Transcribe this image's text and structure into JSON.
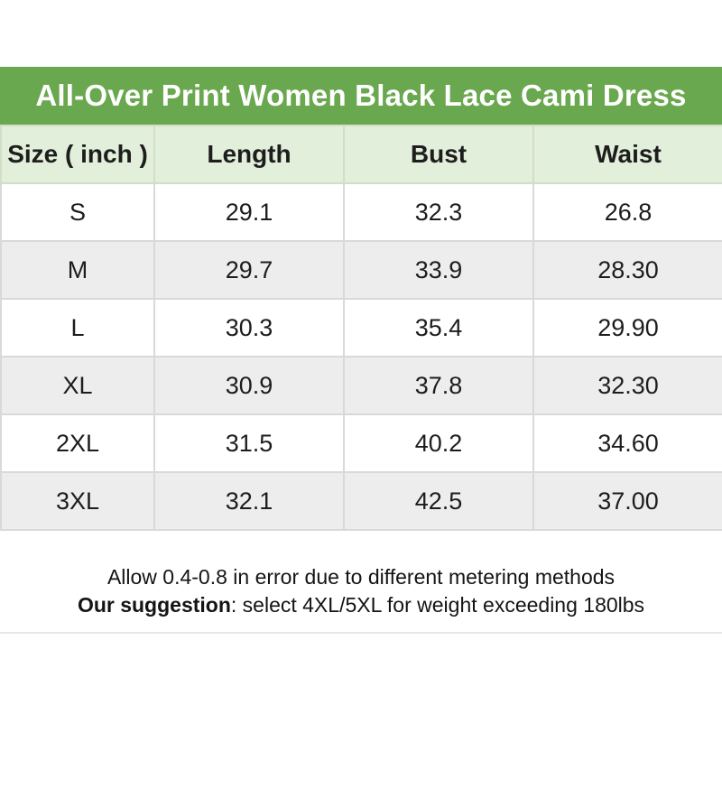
{
  "banner": {
    "title": "All-Over Print Women Black Lace Cami Dress"
  },
  "size_chart": {
    "columns": [
      "Size ( inch )",
      "Length",
      "Bust",
      "Waist"
    ],
    "rows": [
      {
        "size": "S",
        "length": "29.1",
        "bust": "32.3",
        "waist": "26.8"
      },
      {
        "size": "M",
        "length": "29.7",
        "bust": "33.9",
        "waist": "28.30"
      },
      {
        "size": "L",
        "length": "30.3",
        "bust": "35.4",
        "waist": "29.90"
      },
      {
        "size": "XL",
        "length": "30.9",
        "bust": "37.8",
        "waist": "32.30"
      },
      {
        "size": "2XL",
        "length": "31.5",
        "bust": "40.2",
        "waist": "34.60"
      },
      {
        "size": "3XL",
        "length": "32.1",
        "bust": "42.5",
        "waist": "37.00"
      }
    ]
  },
  "notes": {
    "line1": "Allow 0.4-0.8 in error due to different metering methods",
    "line2_bold": "Our suggestion",
    "line2_rest": ": select 4XL/5XL for weight exceeding 180lbs"
  },
  "colors": {
    "banner_bg": "#6aa84f",
    "banner_text": "#ffffff",
    "header_row_bg": "#e2efda",
    "alt_row_bg": "#ededed",
    "row_bg": "#ffffff",
    "cell_border": "#d9d9d9",
    "text": "#1d1d1d",
    "bottom_divider": "#e7e7e7"
  },
  "chart_data": {
    "type": "table",
    "title": "All-Over Print Women Black Lace Cami Dress",
    "unit": "inch",
    "columns": [
      "Size ( inch )",
      "Length",
      "Bust",
      "Waist"
    ],
    "rows": [
      [
        "S",
        29.1,
        32.3,
        26.8
      ],
      [
        "M",
        29.7,
        33.9,
        28.3
      ],
      [
        "L",
        30.3,
        35.4,
        29.9
      ],
      [
        "XL",
        30.9,
        37.8,
        32.3
      ],
      [
        "2XL",
        31.5,
        40.2,
        34.6
      ],
      [
        "3XL",
        32.1,
        42.5,
        37.0
      ]
    ],
    "footnotes": [
      "Allow 0.4-0.8 in error due to different metering methods",
      "Our suggestion: select 4XL/5XL for weight exceeding 180lbs"
    ]
  }
}
